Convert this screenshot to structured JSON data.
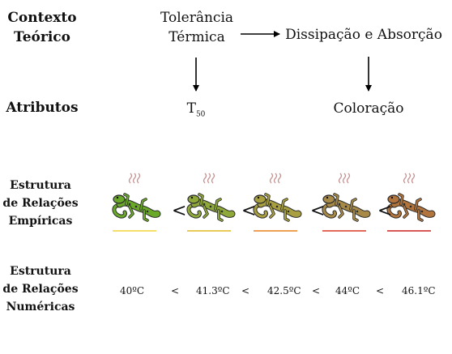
{
  "rows": {
    "contexto": [
      "Contexto",
      "Teórico"
    ],
    "atributos": "Atributos",
    "empiricas": [
      "Estrutura",
      "de Relações",
      "Empíricas"
    ],
    "numericas": [
      "Estrutura",
      "de Relações",
      "Numéricas"
    ]
  },
  "context": {
    "tolerancia": [
      "Tolerância",
      "Térmica"
    ],
    "dissipacao": "Dissipação e Absorção"
  },
  "attributes": {
    "t50_base": "T",
    "t50_sub": "50",
    "coloracao": "Coloração"
  },
  "lizards": [
    {
      "body": "#6aa82a",
      "line": "#f2d438"
    },
    {
      "body": "#8fa83a",
      "line": "#e0b820"
    },
    {
      "body": "#a8a040",
      "line": "#e8801c"
    },
    {
      "body": "#a88a48",
      "line": "#d83820"
    },
    {
      "body": "#b0743c",
      "line": "#cc2020"
    }
  ],
  "relation_symbol": "<",
  "temperatures": [
    "40ºC",
    "41.3ºC",
    "42.5ºC",
    "44ºC",
    "46.1ºC"
  ]
}
